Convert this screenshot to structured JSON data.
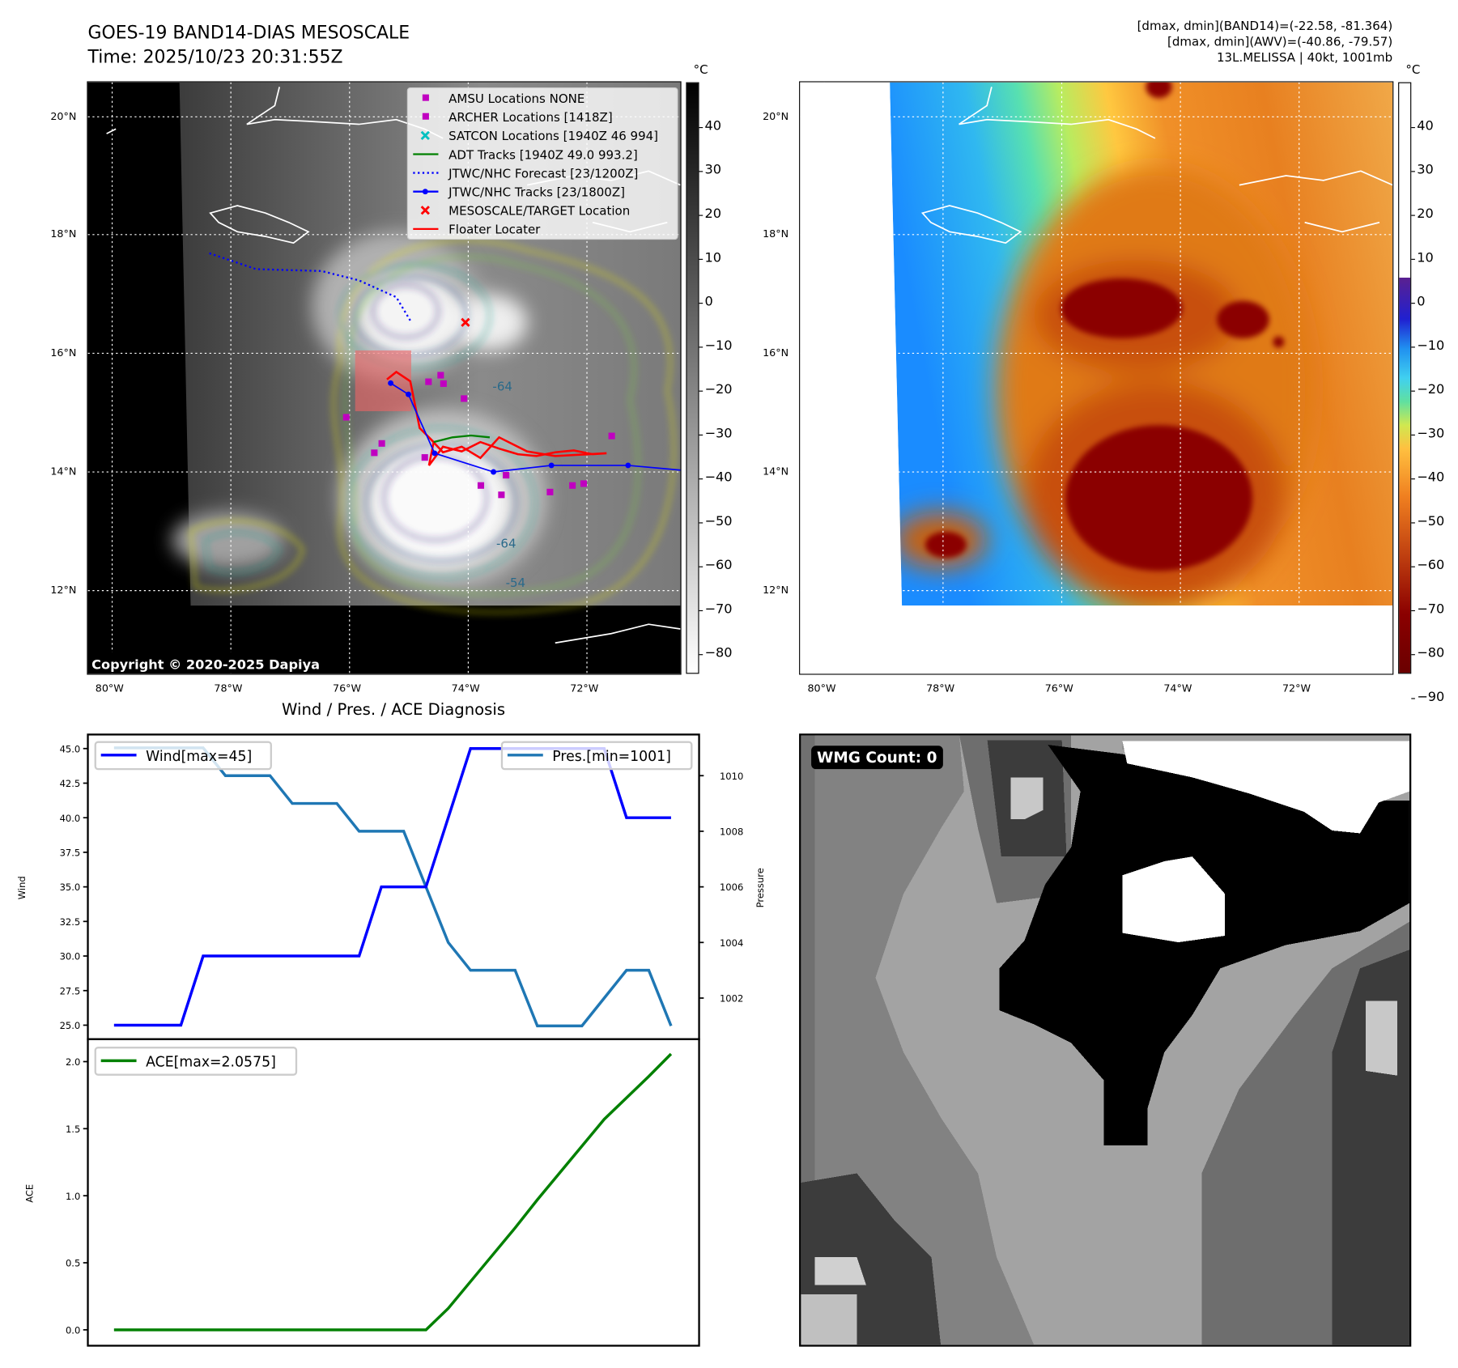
{
  "header": {
    "title": "GOES-19 BAND14-DIAS MESOSCALE",
    "time": "Time: 2025/10/23 20:31:55Z",
    "info": [
      "[dmax, dmin](BAND14)=(-22.58, -81.364)",
      "[dmax, dmin](AWV)=(-40.86, -79.57)",
      "13L.MELISSA | 40kt, 1001mb"
    ]
  },
  "maps": {
    "lon_ticks": [
      "80°W",
      "78°W",
      "76°W",
      "74°W",
      "72°W"
    ],
    "lat_ticks": [
      "20°N",
      "18°N",
      "16°N",
      "14°N",
      "12°N"
    ],
    "colorbar_unit": "°C",
    "colorbar_ticks": [
      "40",
      "30",
      "20",
      "10",
      "0",
      "−10",
      "−20",
      "−30",
      "−40",
      "−50",
      "−60",
      "−70",
      "−80"
    ],
    "colorbar_ticks_right": [
      "40",
      "30",
      "20",
      "10",
      "0",
      "−10",
      "−20",
      "−30",
      "−40",
      "−50",
      "−60",
      "−70",
      "−80",
      "−90"
    ],
    "copyright": "Copyright © 2020-2025 Dapiya",
    "contour_labels": [
      "-64",
      "-64",
      "-54"
    ],
    "legend": [
      {
        "label": "AMSU Locations NONE",
        "color": "#c000c0",
        "marker": "square"
      },
      {
        "label": "ARCHER Locations [1418Z]",
        "color": "#c000c0",
        "marker": "square"
      },
      {
        "label": "SATCON Locations [1940Z 46 994]",
        "color": "#00c0c0",
        "marker": "x"
      },
      {
        "label": "ADT Tracks [1940Z 49.0 993.2]",
        "color": "#008000",
        "marker": "line"
      },
      {
        "label": "JTWC/NHC Forecast [23/1200Z]",
        "color": "#0000ff",
        "marker": "dotted"
      },
      {
        "label": "JTWC/NHC Tracks [23/1800Z]",
        "color": "#0000ff",
        "marker": "line-dot"
      },
      {
        "label": "MESOSCALE/TARGET Location",
        "color": "#ff0000",
        "marker": "x"
      },
      {
        "label": "Floater Locater",
        "color": "#ff0000",
        "marker": "line"
      }
    ]
  },
  "diagnosis_title": "Wind / Pres. / ACE Diagnosis",
  "wmg": {
    "label": "WMG Count: 0"
  },
  "chart_data": [
    {
      "type": "line",
      "title": "Wind / Pres. / ACE Diagnosis",
      "ylabel": "Wind",
      "y2label": "Pressure",
      "x": [
        0,
        1,
        2,
        3,
        4,
        5,
        6,
        7,
        8,
        9,
        10,
        11,
        12,
        13,
        14,
        15,
        16,
        17,
        18,
        19,
        20,
        21,
        22,
        23,
        24,
        25
      ],
      "ylim": [
        24.5,
        45.5
      ],
      "y2lim": [
        1000.5,
        1011.5
      ],
      "yticks": [
        "45.0",
        "42.5",
        "40.0",
        "37.5",
        "35.0",
        "32.5",
        "30.0",
        "27.5",
        "25.0"
      ],
      "y2ticks": [
        "1010",
        "1008",
        "1006",
        "1004",
        "1002"
      ],
      "series": [
        {
          "name": "Wind[max=45]",
          "color": "#0000ff",
          "axis": "left",
          "values": [
            25,
            25,
            25,
            25,
            30,
            30,
            30,
            30,
            30,
            30,
            30,
            30,
            35,
            35,
            35,
            40,
            45,
            45,
            45,
            45,
            45,
            45,
            45,
            40,
            40,
            40
          ]
        },
        {
          "name": "Pres.[min=1001]",
          "color": "#1f77b4",
          "axis": "right",
          "values": [
            1011,
            1011,
            1011,
            1011,
            1011,
            1010,
            1010,
            1010,
            1009,
            1009,
            1009,
            1008,
            1008,
            1008,
            1006,
            1004,
            1003,
            1003,
            1003,
            1001,
            1001,
            1001,
            1002,
            1003,
            1003,
            1001
          ]
        }
      ]
    },
    {
      "type": "line",
      "ylabel": "ACE",
      "ylim": [
        -0.1,
        2.2
      ],
      "yticks": [
        "2.0",
        "1.5",
        "1.0",
        "0.5",
        "0.0"
      ],
      "x": [
        0,
        1,
        2,
        3,
        4,
        5,
        6,
        7,
        8,
        9,
        10,
        11,
        12,
        13,
        14,
        15,
        16,
        17,
        18,
        19,
        20,
        21,
        22,
        23,
        24,
        25
      ],
      "series": [
        {
          "name": "ACE[max=2.0575]",
          "color": "#008000",
          "values": [
            0,
            0,
            0,
            0,
            0,
            0,
            0,
            0,
            0,
            0,
            0,
            0,
            0,
            0,
            0,
            0.16,
            0.36,
            0.56,
            0.76,
            0.97,
            1.17,
            1.37,
            1.57,
            1.73,
            1.89,
            2.0575
          ]
        }
      ]
    }
  ]
}
